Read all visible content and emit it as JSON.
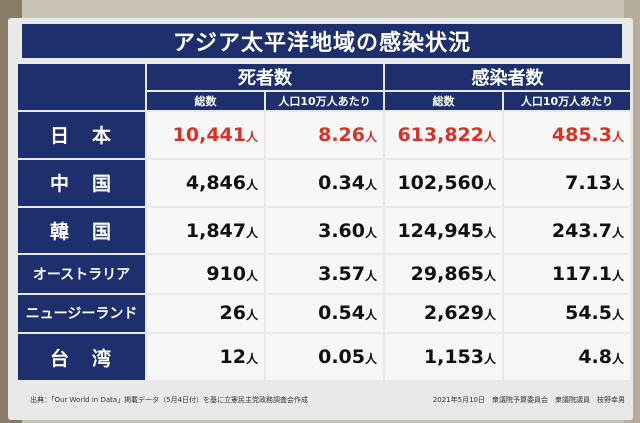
{
  "title": "アジア太平洋地域の感染状況",
  "groups": {
    "deaths": "死者数",
    "infections": "感染者数"
  },
  "subheaders": {
    "total": "総数",
    "per100k": "人口10万人あたり"
  },
  "unit": "人",
  "rows": [
    {
      "country": "日　本",
      "deaths_total": "10,441",
      "deaths_per100k": "8.26",
      "cases_total": "613,822",
      "cases_per100k": "485.3"
    },
    {
      "country": "中　国",
      "deaths_total": "4,846",
      "deaths_per100k": "0.34",
      "cases_total": "102,560",
      "cases_per100k": "7.13"
    },
    {
      "country": "韓　国",
      "deaths_total": "1,847",
      "deaths_per100k": "3.60",
      "cases_total": "124,945",
      "cases_per100k": "243.7"
    },
    {
      "country": "オーストラリア",
      "deaths_total": "910",
      "deaths_per100k": "3.57",
      "cases_total": "29,865",
      "cases_per100k": "117.1"
    },
    {
      "country": "ニュージーランド",
      "deaths_total": "26",
      "deaths_per100k": "0.54",
      "cases_total": "2,629",
      "cases_per100k": "54.5"
    },
    {
      "country": "台　湾",
      "deaths_total": "12",
      "deaths_per100k": "0.05",
      "cases_total": "1,153",
      "cases_per100k": "4.8"
    }
  ],
  "highlight_color": "#d6322a",
  "footer": {
    "source": "出典：「Our World in Data」掲載データ（5月4日付）を基に立憲民主党政務調査会作成",
    "date_credit": "2021年5月10日　衆議院予算委員会　衆議院議員　枝野幸男"
  }
}
